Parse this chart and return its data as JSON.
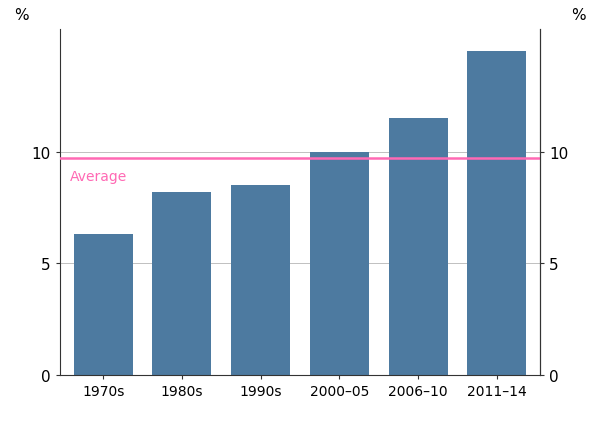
{
  "categories": [
    "1970s",
    "1980s",
    "1990s",
    "2000–05",
    "2006–10",
    "2011–14"
  ],
  "values": [
    6.3,
    8.2,
    8.5,
    10.0,
    11.5,
    14.5
  ],
  "bar_color": "#4d7aa0",
  "average_value": 9.7,
  "average_label": "Average",
  "average_color": "#ff69b4",
  "ylim": [
    0,
    15.5
  ],
  "yticks": [
    0,
    5,
    10
  ],
  "ylabel_left": "%",
  "ylabel_right": "%",
  "grid_color": "#c0c0c0",
  "background_color": "#ffffff",
  "tick_fontsize": 11,
  "label_fontsize": 11,
  "average_fontsize": 10,
  "bar_width": 0.75
}
